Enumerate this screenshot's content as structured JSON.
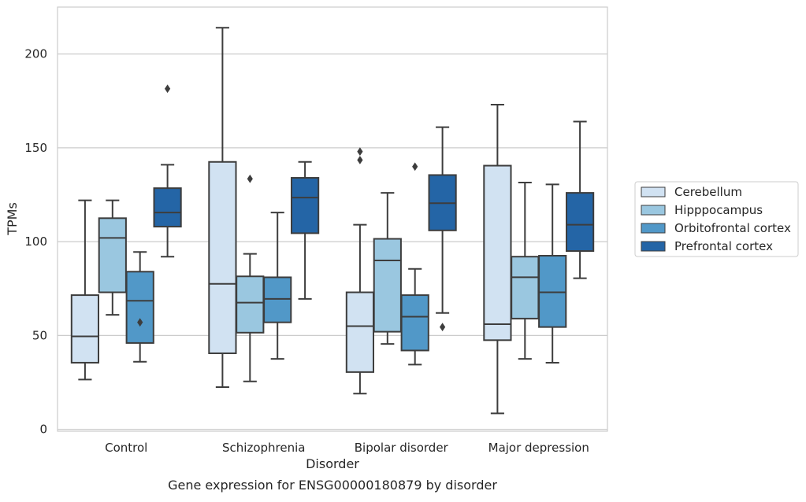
{
  "chart_data": {
    "type": "box",
    "title": "",
    "caption": "Gene expression for ENSG00000180879 by disorder",
    "xlabel": "Disorder",
    "ylabel": "TPMs",
    "ylim": [
      -1,
      225
    ],
    "yticks": [
      0,
      50,
      100,
      150,
      200
    ],
    "grid": "horizontal",
    "legend_position": "right",
    "categories": [
      "Control",
      "Schizophrenia",
      "Bipolar disorder",
      "Major depression"
    ],
    "series": [
      {
        "name": "Cerebellum",
        "color": "#d1e2f2",
        "boxes": [
          {
            "whisker_low": 26.5,
            "q1": 35.5,
            "median": 49.5,
            "q3": 71.5,
            "whisker_high": 122,
            "outliers": []
          },
          {
            "whisker_low": 22.5,
            "q1": 40.5,
            "median": 77.5,
            "q3": 142.5,
            "whisker_high": 214,
            "outliers": []
          },
          {
            "whisker_low": 19,
            "q1": 30.5,
            "median": 55,
            "q3": 73,
            "whisker_high": 109,
            "outliers": [
              148,
              143.5
            ]
          },
          {
            "whisker_low": 8.5,
            "q1": 47.5,
            "median": 56,
            "q3": 140.5,
            "whisker_high": 173,
            "outliers": []
          }
        ]
      },
      {
        "name": "Hipppocampus",
        "color": "#9ac7e0",
        "boxes": [
          {
            "whisker_low": 61,
            "q1": 73,
            "median": 102,
            "q3": 112.5,
            "whisker_high": 122,
            "outliers": []
          },
          {
            "whisker_low": 25.5,
            "q1": 51.5,
            "median": 67.5,
            "q3": 81.5,
            "whisker_high": 93.5,
            "outliers": [
              133.5
            ]
          },
          {
            "whisker_low": 45.5,
            "q1": 52,
            "median": 90,
            "q3": 101.5,
            "whisker_high": 126,
            "outliers": []
          },
          {
            "whisker_low": 37.5,
            "q1": 59,
            "median": 81,
            "q3": 92,
            "whisker_high": 131.5,
            "outliers": []
          }
        ]
      },
      {
        "name": "Orbitofrontal cortex",
        "color": "#5198c8",
        "boxes": [
          {
            "whisker_low": 36,
            "q1": 46,
            "median": 68.5,
            "q3": 84,
            "whisker_high": 94.5,
            "outliers": [
              57
            ]
          },
          {
            "whisker_low": 37.5,
            "q1": 57,
            "median": 69.5,
            "q3": 81,
            "whisker_high": 115.5,
            "outliers": []
          },
          {
            "whisker_low": 34.5,
            "q1": 42,
            "median": 60,
            "q3": 71.5,
            "whisker_high": 85.5,
            "outliers": [
              140
            ]
          },
          {
            "whisker_low": 35.5,
            "q1": 54.5,
            "median": 73,
            "q3": 92.5,
            "whisker_high": 130.5,
            "outliers": []
          }
        ]
      },
      {
        "name": "Prefrontal cortex",
        "color": "#2465a6",
        "boxes": [
          {
            "whisker_low": 92,
            "q1": 108,
            "median": 115.5,
            "q3": 128.5,
            "whisker_high": 141,
            "outliers": [
              181.5
            ]
          },
          {
            "whisker_low": 69.5,
            "q1": 104.5,
            "median": 123.5,
            "q3": 134,
            "whisker_high": 142.5,
            "outliers": []
          },
          {
            "whisker_low": 62,
            "q1": 106,
            "median": 120.5,
            "q3": 135.5,
            "whisker_high": 161,
            "outliers": [
              54.5
            ]
          },
          {
            "whisker_low": 80.5,
            "q1": 95,
            "median": 109,
            "q3": 126,
            "whisker_high": 164,
            "outliers": []
          }
        ]
      }
    ]
  }
}
